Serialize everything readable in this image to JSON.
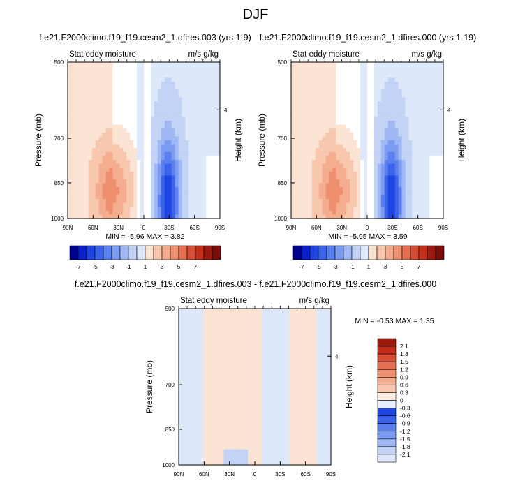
{
  "figure_title": "DJF",
  "colors": {
    "neg": [
      "#00008f",
      "#0a1fc8",
      "#1f45e0",
      "#3a63ea",
      "#5b80ee",
      "#7c9cf1",
      "#a0b8f4",
      "#c2d3f6",
      "#dde8fa"
    ],
    "pos": [
      "#fbe4d4",
      "#f8c8ae",
      "#f4ad8f",
      "#ee8f6f",
      "#e46f52",
      "#d64d33",
      "#c22e1a",
      "#9c1a0e",
      "#7a0c0c"
    ]
  },
  "chart_data": [
    {
      "type": "heatmap",
      "title": "f.e21.F2000climo.f19_f19.cesm2_1.dfires.003 (yrs 1-9)",
      "left_label": "Stat eddy moisture",
      "right_label": "m/s g/kg",
      "ylabel": "Pressure (mb)",
      "y2label": "Height (km)",
      "y_ticks": [
        "500",
        "700",
        "850",
        "1000"
      ],
      "y2_ticks": [
        "4"
      ],
      "x_ticks": [
        "90N",
        "60N",
        "30N",
        "0",
        "30S",
        "60S",
        "90S"
      ],
      "stats": {
        "min_label": "MIN =",
        "min": "-5.96",
        "max_label": "MAX =",
        "max": "3.82"
      },
      "colorbar_labels": [
        "-7",
        "-5",
        "-3",
        "-1",
        "1",
        "3",
        "5",
        "7"
      ]
    },
    {
      "type": "heatmap",
      "title": "f.e21.F2000climo.f19_f19.cesm2_1.dfires.000 (yrs 1-19)",
      "left_label": "Stat eddy moisture",
      "right_label": "m/s g/kg",
      "ylabel": "Pressure (mb)",
      "y2label": "Height (km)",
      "y_ticks": [
        "500",
        "700",
        "850",
        "1000"
      ],
      "y2_ticks": [
        "4"
      ],
      "x_ticks": [
        "90N",
        "60N",
        "30N",
        "0",
        "30S",
        "60S",
        "90S"
      ],
      "stats": {
        "min_label": "MIN =",
        "min": "-5.95",
        "max_label": "MAX =",
        "max": "3.59"
      },
      "colorbar_labels": [
        "-7",
        "-5",
        "-3",
        "-1",
        "1",
        "3",
        "5",
        "7"
      ]
    },
    {
      "type": "heatmap",
      "title": "f.e21.F2000climo.f19_f19.cesm2_1.dfires.003 - f.e21.F2000climo.f19_f19.cesm2_1.dfires.000",
      "left_label": "Stat eddy moisture",
      "right_label": "m/s g/kg",
      "ylabel": "Pressure (mb)",
      "y2label": "Height (km)",
      "y_ticks": [
        "500",
        "700",
        "850",
        "1000"
      ],
      "y2_ticks": [
        "4"
      ],
      "x_ticks": [
        "90N",
        "60N",
        "30N",
        "0",
        "30S",
        "60S",
        "90S"
      ],
      "stats": {
        "min_label": "MIN =",
        "min": "-0.53",
        "max_label": "MAX =",
        "max": "1.35"
      },
      "colorbar_labels": [
        "2.1",
        "1.8",
        "1.5",
        "1.2",
        "0.9",
        "0.6",
        "0.3",
        "0",
        "-0.3",
        "-0.6",
        "-0.9",
        "-1.2",
        "-1.5",
        "-1.8",
        "-2.1"
      ]
    }
  ]
}
